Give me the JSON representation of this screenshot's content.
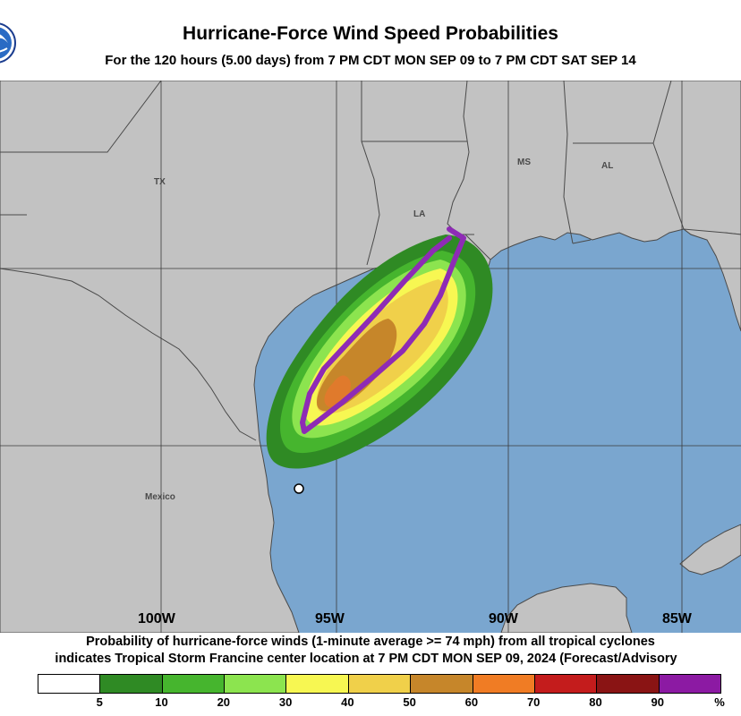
{
  "header": {
    "title": "Hurricane-Force Wind Speed Probabilities",
    "subtitle": "For the 120 hours (5.00 days) from 7 PM CDT MON SEP 09 to 7 PM CDT SAT SEP 14"
  },
  "map": {
    "state_labels": [
      "TX",
      "LA",
      "MS",
      "AL"
    ],
    "country_labels": [
      "Mexico"
    ],
    "longitude_labels": [
      "100W",
      "95W",
      "90W",
      "85W"
    ],
    "colors": {
      "land": "#c2c2c2",
      "water": "#7aa6cf",
      "borders": "#4a4a4a",
      "graticule": "#3a3a3a",
      "track_outline": "#8e2bb5",
      "center_marker": "#ffffff"
    }
  },
  "footer": {
    "line1": "Probability of hurricane-force winds (1-minute average >= 74 mph) from all tropical cyclones",
    "line2": "indicates Tropical Storm Francine center location at 7 PM CDT MON SEP 09, 2024 (Forecast/Advisory"
  },
  "legend": {
    "colors": [
      "#ffffff",
      "#2f8a24",
      "#46b52e",
      "#8ce44f",
      "#f7f752",
      "#f0d04a",
      "#c6862a",
      "#f07c24",
      "#c41c1c",
      "#8a1414",
      "#8c1aa3"
    ],
    "labels": [
      "5",
      "10",
      "20",
      "30",
      "40",
      "50",
      "60",
      "70",
      "80",
      "90",
      "%"
    ]
  }
}
